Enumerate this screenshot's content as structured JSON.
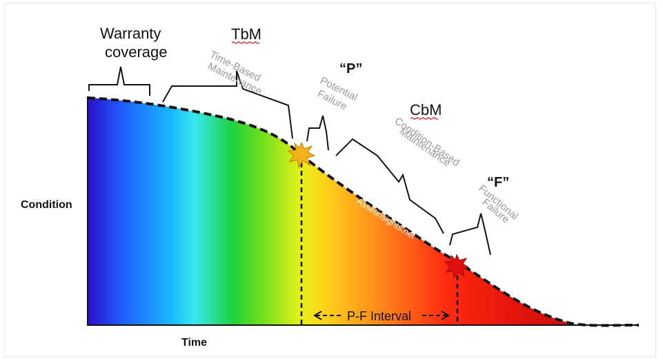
{
  "diagram": {
    "y_axis_label": "Condition",
    "x_axis_label": "Time",
    "gradient_colors": [
      "#2a10c8",
      "#1f5cff",
      "#19b6ff",
      "#38e7f0",
      "#1fd23a",
      "#6ee01c",
      "#e6f21a",
      "#ffd21a",
      "#ff8a1a",
      "#ff2a10",
      "#e5140c",
      "#c8100a"
    ],
    "phases": {
      "warranty": {
        "line1": "Warranty",
        "line2": "coverage"
      },
      "tbm": {
        "title": "TbM",
        "line1": "Time-Based",
        "line2": "Maintenance"
      },
      "p_point": {
        "title": "“P”",
        "line1": "Potential",
        "line2": "Failure"
      },
      "cbm": {
        "title": "CbM",
        "line1": "Condition-Based",
        "line2": "Maintenance"
      },
      "f_point": {
        "title": "“F”",
        "line1": "Functional",
        "line2": "Failure"
      }
    },
    "interval_label": "P-F Interval",
    "watermark": "Assetinsights.net",
    "colors": {
      "potential_failure_marker": "#f5b31b",
      "functional_failure_marker": "#e01010",
      "curve": "#111111",
      "squiggle": "#d9302a"
    }
  }
}
